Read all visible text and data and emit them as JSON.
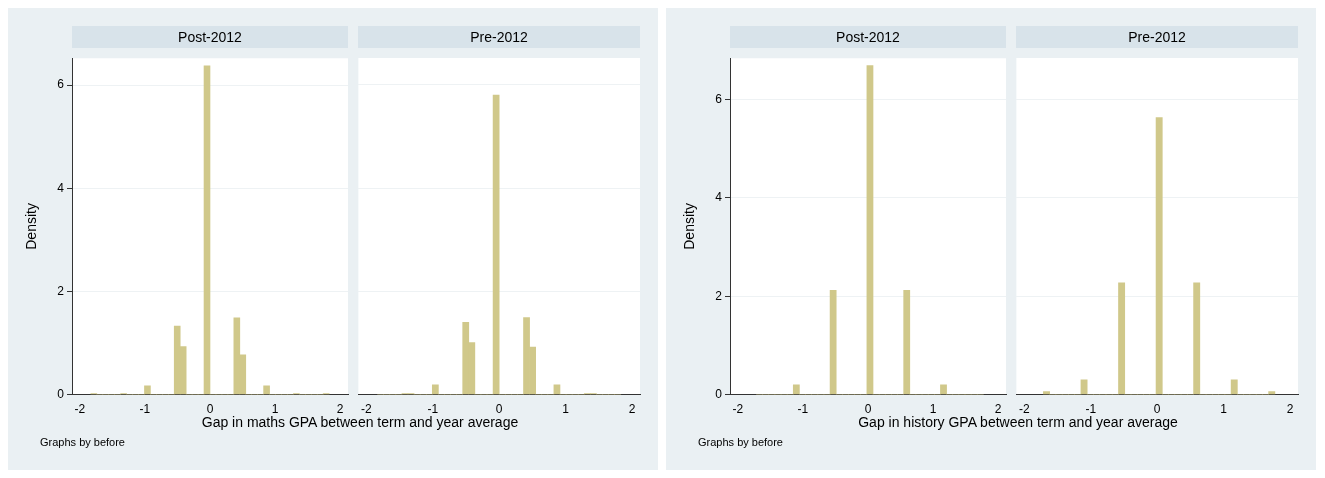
{
  "chart_data": [
    {
      "type": "histogram",
      "title": "Post-2012",
      "ylabel": "Density",
      "xlabel": "Gap in maths GPA between term and year average",
      "annotations": [
        "Graphs by before"
      ],
      "color": "#d0c88a",
      "grid": "y",
      "xlim": [
        -2.12,
        2.12
      ],
      "xticks": [
        -2,
        -1,
        0,
        1,
        2
      ],
      "ylim": [
        0,
        6.52
      ],
      "yticks": [
        0,
        2,
        4,
        6
      ],
      "bins": [
        -1.83,
        -1.739,
        -1.647,
        -1.556,
        -1.464,
        -1.373,
        -1.281,
        -1.19,
        -1.098,
        -1.007,
        -0.915,
        -0.824,
        -0.732,
        -0.641,
        -0.549,
        -0.458,
        -0.366,
        -0.275,
        -0.183,
        -0.092,
        0,
        0.092,
        0.183,
        0.275,
        0.366,
        0.458,
        0.549,
        0.641,
        0.732,
        0.824,
        0.915,
        1.007,
        1.098,
        1.19,
        1.281,
        1.373,
        1.464,
        1.556,
        1.647,
        1.739,
        1.83
      ],
      "values": [
        0.02,
        0,
        0,
        0,
        0,
        0.02,
        0,
        0,
        0,
        0.17,
        0,
        0,
        0,
        0,
        1.33,
        0.93,
        0,
        0,
        0,
        6.37,
        0,
        0,
        0,
        0,
        1.49,
        0.77,
        0,
        0,
        0,
        0.17,
        0,
        0,
        0,
        0,
        0.02,
        0,
        0,
        0,
        0,
        0.02
      ]
    },
    {
      "type": "histogram",
      "title": "Pre-2012",
      "color": "#d0c88a",
      "grid": "y",
      "tick_labels": "x",
      "xlim": [
        -2.12,
        2.12
      ],
      "xticks": [
        -2,
        -1,
        0,
        1,
        2
      ],
      "ylim": [
        0,
        6.52
      ],
      "yticks": [
        0,
        2,
        4,
        6
      ],
      "bins": [
        -1.83,
        -1.739,
        -1.647,
        -1.556,
        -1.464,
        -1.373,
        -1.281,
        -1.19,
        -1.098,
        -1.007,
        -0.915,
        -0.824,
        -0.732,
        -0.641,
        -0.549,
        -0.458,
        -0.366,
        -0.275,
        -0.183,
        -0.092,
        0,
        0.092,
        0.183,
        0.275,
        0.366,
        0.458,
        0.549,
        0.641,
        0.732,
        0.824,
        0.915,
        1.007,
        1.098,
        1.19,
        1.281,
        1.373,
        1.464,
        1.556,
        1.647,
        1.739,
        1.83
      ],
      "values": [
        0,
        0,
        0,
        0,
        0.02,
        0.02,
        0,
        0,
        0,
        0.19,
        0,
        0,
        0,
        0,
        1.4,
        1.01,
        0,
        0,
        0,
        5.8,
        0,
        0,
        0,
        0,
        1.49,
        0.92,
        0,
        0,
        0,
        0.19,
        0,
        0,
        0,
        0,
        0.02,
        0.02,
        0,
        0,
        0,
        0
      ]
    },
    {
      "type": "histogram",
      "title": "Post-2012",
      "ylabel": "Density",
      "xlabel": "Gap in history GPA between term and year average",
      "annotations": [
        "Graphs by before"
      ],
      "color": "#d0c88a",
      "grid": "y",
      "xlim": [
        -2.12,
        2.12
      ],
      "xticks": [
        -2,
        -1,
        0,
        1,
        2
      ],
      "ylim": [
        0,
        6.84
      ],
      "yticks": [
        0,
        2,
        4,
        6
      ],
      "bins": [
        -1.713,
        -1.619,
        -1.525,
        -1.43,
        -1.336,
        -1.242,
        -1.148,
        -1.054,
        -0.959,
        -0.865,
        -0.771,
        -0.677,
        -0.583,
        -0.488,
        -0.394,
        -0.3,
        -0.206,
        -0.112,
        -0.017,
        0.077,
        0.171,
        0.265,
        0.359,
        0.454,
        0.548,
        0.642,
        0.736,
        0.83,
        0.925,
        1.019,
        1.113,
        1.207,
        1.301,
        1.396,
        1.49,
        1.584,
        1.678,
        1.772
      ],
      "values": [
        0,
        0,
        0,
        0,
        0,
        0,
        0.2,
        0,
        0,
        0,
        0,
        0,
        2.12,
        0,
        0,
        0,
        0,
        0,
        6.69,
        0,
        0,
        0,
        0,
        0,
        2.12,
        0,
        0,
        0,
        0,
        0,
        0.2,
        0,
        0,
        0,
        0,
        0,
        0
      ]
    },
    {
      "type": "histogram",
      "title": "Pre-2012",
      "color": "#d0c88a",
      "grid": "y",
      "tick_labels": "x",
      "xlim": [
        -2.12,
        2.12
      ],
      "xticks": [
        -2,
        -1,
        0,
        1,
        2
      ],
      "ylim": [
        0,
        6.84
      ],
      "yticks": [
        0,
        2,
        4,
        6
      ],
      "bins": [
        -1.713,
        -1.619,
        -1.525,
        -1.43,
        -1.336,
        -1.242,
        -1.148,
        -1.054,
        -0.959,
        -0.865,
        -0.771,
        -0.677,
        -0.583,
        -0.488,
        -0.394,
        -0.3,
        -0.206,
        -0.112,
        -0.017,
        0.077,
        0.171,
        0.265,
        0.359,
        0.454,
        0.548,
        0.642,
        0.736,
        0.83,
        0.925,
        1.019,
        1.113,
        1.207,
        1.301,
        1.396,
        1.49,
        1.584,
        1.678,
        1.772
      ],
      "values": [
        0.06,
        0,
        0,
        0,
        0,
        0,
        0.3,
        0,
        0,
        0,
        0,
        0,
        2.27,
        0,
        0,
        0,
        0,
        0,
        5.63,
        0,
        0,
        0,
        0,
        0,
        2.27,
        0,
        0,
        0,
        0,
        0,
        0.3,
        0,
        0,
        0,
        0,
        0,
        0.06
      ]
    }
  ]
}
